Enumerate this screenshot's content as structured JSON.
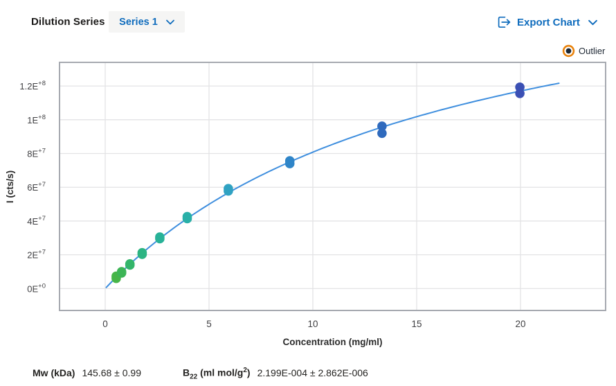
{
  "header": {
    "title": "Dilution Series",
    "series_selector": {
      "value": "Series 1"
    },
    "export_label": "Export Chart"
  },
  "icons": {
    "series_dropdown": "chevron-down",
    "export": "export-arrow",
    "export_dropdown": "chevron-down",
    "outlier_marker": "orange-ring-dot"
  },
  "legend": {
    "outlier_label": "Outlier",
    "outlier_ring_color": "#e8820c",
    "outlier_dot_color": "#1d2733"
  },
  "colors": {
    "accent_blue": "#0f6cbd",
    "plot_border": "#a6a9b0",
    "grid": "#e3e3e5",
    "tick_text": "#3f3f42",
    "curve": "#3e8ede"
  },
  "chart_data": {
    "type": "scatter",
    "title": "Dilution Series",
    "xlabel": "Concentration (mg/ml)",
    "ylabel": "I (cts/s)",
    "xlim": [
      -2.2,
      24.1
    ],
    "ylim": [
      -13000000,
      134000000
    ],
    "grid": true,
    "x_ticks": [
      0,
      5,
      10,
      15,
      20
    ],
    "y_ticks": [
      {
        "mantissa": "0E",
        "exp": "+0",
        "value": 0
      },
      {
        "mantissa": "2E",
        "exp": "+7",
        "value": 20000000
      },
      {
        "mantissa": "4E",
        "exp": "+7",
        "value": 40000000
      },
      {
        "mantissa": "6E",
        "exp": "+7",
        "value": 60000000
      },
      {
        "mantissa": "8E",
        "exp": "+7",
        "value": 80000000
      },
      {
        "mantissa": "1E",
        "exp": "+8",
        "value": 100000000
      },
      {
        "mantissa": "1.2E",
        "exp": "+8",
        "value": 120000000
      }
    ],
    "legend": {
      "position": "top-right",
      "items": [
        {
          "label": "Outlier",
          "marker": "orange-ring"
        }
      ]
    },
    "series": [
      {
        "name": "Series 1",
        "marker_radius_px": 6.8,
        "points": [
          {
            "x": 0.53,
            "y": [
              7300000,
              6000000
            ],
            "color": "#46b548"
          },
          {
            "x": 0.79,
            "y": [
              10000000,
              9200000
            ],
            "color": "#3db556"
          },
          {
            "x": 1.19,
            "y": [
              14600000,
              13900000
            ],
            "color": "#33b56a"
          },
          {
            "x": 1.78,
            "y": [
              21200000,
              20300000
            ],
            "color": "#2cb482"
          },
          {
            "x": 2.63,
            "y": [
              30500000,
              29500000
            ],
            "color": "#28b298"
          },
          {
            "x": 3.95,
            "y": [
              42600000,
              41400000
            ],
            "color": "#29b0a8"
          },
          {
            "x": 5.93,
            "y": [
              59200000,
              57800000
            ],
            "color": "#2fa2c2"
          },
          {
            "x": 8.89,
            "y": [
              75700000,
              74000000
            ],
            "color": "#2f85c8"
          },
          {
            "x": 13.33,
            "y": [
              96200000,
              92000000
            ],
            "color": "#2f6abd"
          },
          {
            "x": 19.97,
            "y": [
              119300000,
              115600000
            ],
            "color": "#3b50b4"
          }
        ]
      }
    ],
    "fit_curve": {
      "model": "I = A*x / (1 + B*x)",
      "A": 13060000,
      "B": 0.0616,
      "x_range": [
        0.05,
        22
      ],
      "color": "#3e8ede"
    }
  },
  "results": {
    "mw_label": "Mw (kDa)",
    "mw_value": "145.68 ± 0.99",
    "b22_label_base": "B",
    "b22_label_sub": "22",
    "b22_label_mid": " (ml mol/g",
    "b22_label_sup": "2",
    "b22_label_end": ")",
    "b22_value": "2.199E-004 ± 2.862E-006"
  }
}
